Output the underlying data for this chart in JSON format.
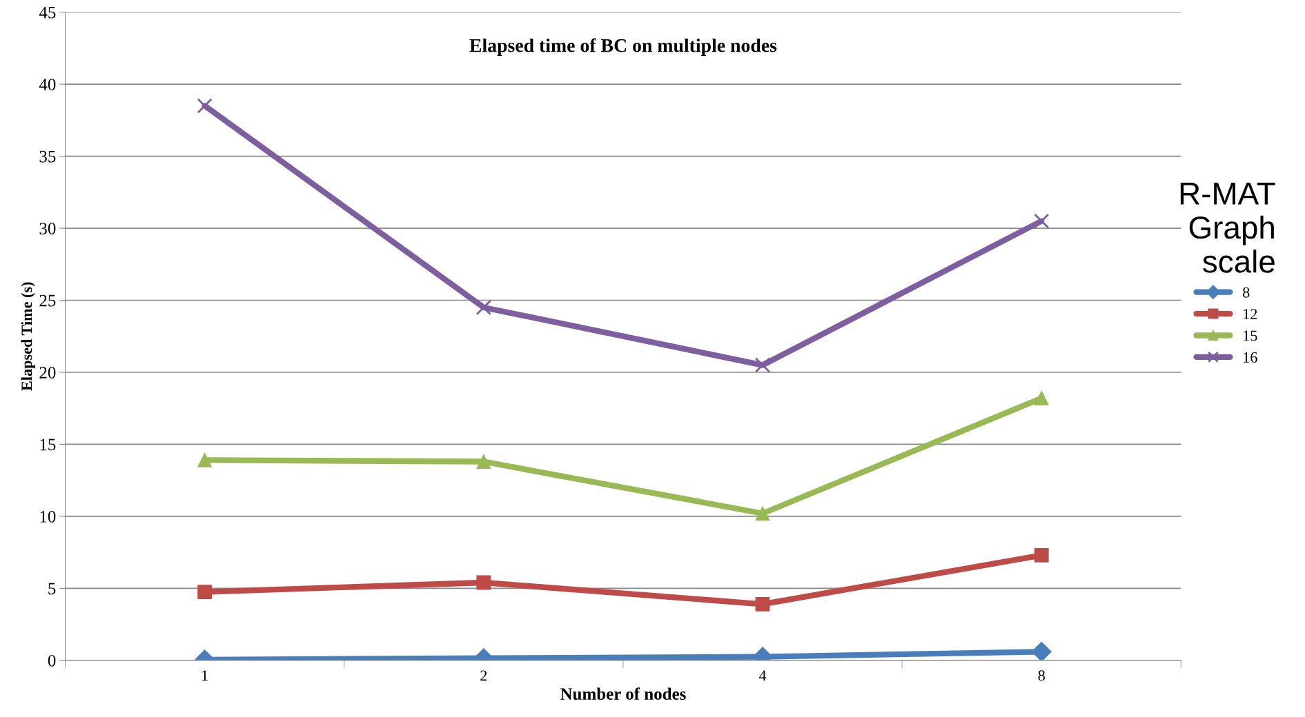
{
  "chart_data": {
    "type": "line",
    "title": "Elapsed time of BC on multiple nodes",
    "xlabel": "Number of nodes",
    "ylabel": "Elapsed Time (s)",
    "legend_title": "R-MAT Graph scale",
    "categories": [
      "1",
      "2",
      "4",
      "8"
    ],
    "series": [
      {
        "name": "8",
        "color": "#4a7ebb",
        "marker": "diamond",
        "values": [
          0.05,
          0.15,
          0.25,
          0.6
        ]
      },
      {
        "name": "12",
        "color": "#be4b48",
        "marker": "square",
        "values": [
          4.75,
          5.4,
          3.9,
          7.3
        ]
      },
      {
        "name": "15",
        "color": "#98b954",
        "marker": "triangle",
        "values": [
          13.9,
          13.8,
          10.2,
          18.2
        ]
      },
      {
        "name": "16",
        "color": "#7d5fa0",
        "marker": "cross",
        "values": [
          38.5,
          24.5,
          20.5,
          30.5
        ]
      }
    ],
    "ylim": [
      0,
      45
    ],
    "yticks": [
      0,
      5,
      10,
      15,
      20,
      25,
      30,
      35,
      40,
      45
    ],
    "grid": "y",
    "legend": "right",
    "line_style": "solid"
  }
}
